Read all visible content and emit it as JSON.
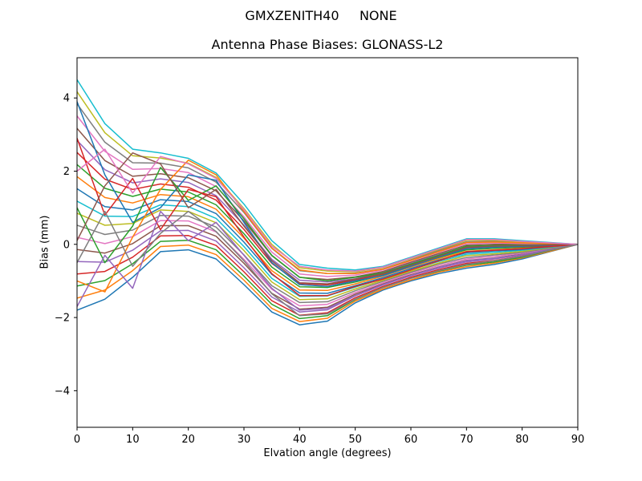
{
  "figure": {
    "suptitle": "GMXZENITH40     NONE",
    "title": "Antenna Phase Biases: GLONASS-L2",
    "xlabel": "Elvation angle (degrees)",
    "ylabel": "Bias (mm)",
    "background": "#ffffff"
  },
  "chart_data": {
    "type": "line",
    "title": "Antenna Phase Biases: GLONASS-L2",
    "suptitle": "GMXZENITH40     NONE",
    "xlabel": "Elvation angle (degrees)",
    "ylabel": "Bias (mm)",
    "xlim": [
      0,
      90
    ],
    "ylim": [
      -5,
      5.1
    ],
    "xticks": [
      0,
      10,
      20,
      30,
      40,
      50,
      60,
      70,
      80,
      90
    ],
    "yticks": [
      -4,
      -2,
      0,
      2,
      4
    ],
    "grid": false,
    "legend": "none",
    "palette": [
      "#1f77b4",
      "#ff7f0e",
      "#2ca02c",
      "#d62728",
      "#9467bd",
      "#8c564b",
      "#e377c2",
      "#7f7f7f",
      "#bcbd22",
      "#17becf"
    ],
    "x": [
      0,
      5,
      10,
      15,
      20,
      25,
      30,
      35,
      40,
      45,
      50,
      55,
      60,
      65,
      70,
      75,
      80,
      85,
      90
    ],
    "series": [
      {
        "name": "line-01",
        "values": [
          -1.8,
          -1.5,
          -0.9,
          -0.2,
          -0.15,
          -0.4,
          -1.1,
          -1.85,
          -2.2,
          -2.1,
          -1.6,
          -1.25,
          -1.0,
          -0.8,
          -0.65,
          -0.55,
          -0.4,
          -0.2,
          0
        ]
      },
      {
        "name": "line-02",
        "values": [
          -1.47,
          -1.25,
          -0.72,
          -0.06,
          -0.02,
          -0.28,
          -0.98,
          -1.75,
          -2.11,
          -2.02,
          -1.55,
          -1.22,
          -0.97,
          -0.76,
          -0.61,
          -0.51,
          -0.37,
          -0.19,
          0
        ]
      },
      {
        "name": "line-03",
        "values": [
          -1.14,
          -0.99,
          -0.53,
          0.08,
          0.11,
          -0.15,
          -0.87,
          -1.64,
          -2.03,
          -1.95,
          -1.51,
          -1.18,
          -0.93,
          -0.73,
          -0.57,
          -0.48,
          -0.35,
          -0.17,
          0
        ]
      },
      {
        "name": "line-04",
        "values": [
          -0.81,
          -0.74,
          -0.35,
          0.23,
          0.24,
          -0.03,
          -0.75,
          -1.54,
          -1.94,
          -1.87,
          -1.46,
          -1.15,
          -0.9,
          -0.69,
          -0.52,
          -0.44,
          -0.32,
          -0.16,
          0
        ]
      },
      {
        "name": "line-05",
        "values": [
          -0.47,
          -0.49,
          -0.16,
          0.37,
          0.38,
          0.09,
          -0.64,
          -1.44,
          -1.85,
          -1.79,
          -1.41,
          -1.11,
          -0.86,
          -0.65,
          -0.48,
          -0.4,
          -0.29,
          -0.15,
          0
        ]
      },
      {
        "name": "line-06",
        "values": [
          -0.14,
          -0.24,
          0.02,
          0.51,
          0.51,
          0.22,
          -0.52,
          -1.34,
          -1.77,
          -1.72,
          -1.36,
          -1.08,
          -0.83,
          -0.62,
          -0.44,
          -0.37,
          -0.27,
          -0.13,
          0
        ]
      },
      {
        "name": "line-07",
        "values": [
          0.19,
          0.02,
          0.21,
          0.65,
          0.64,
          0.34,
          -0.41,
          -1.23,
          -1.68,
          -1.64,
          -1.32,
          -1.05,
          -0.79,
          -0.58,
          -0.4,
          -0.33,
          -0.24,
          -0.12,
          0
        ]
      },
      {
        "name": "line-08",
        "values": [
          0.52,
          0.27,
          0.39,
          0.79,
          0.77,
          0.47,
          -0.29,
          -1.13,
          -1.59,
          -1.57,
          -1.27,
          -1.01,
          -0.76,
          -0.54,
          -0.36,
          -0.29,
          -0.22,
          -0.11,
          0
        ]
      },
      {
        "name": "line-09",
        "values": [
          0.85,
          0.52,
          0.57,
          0.94,
          0.9,
          0.59,
          -0.17,
          -1.03,
          -1.51,
          -1.49,
          -1.22,
          -0.98,
          -0.73,
          -0.51,
          -0.31,
          -0.26,
          -0.19,
          -0.09,
          0
        ]
      },
      {
        "name": "line-10",
        "values": [
          1.18,
          0.77,
          0.76,
          1.08,
          1.03,
          0.71,
          -0.06,
          -0.93,
          -1.42,
          -1.41,
          -1.17,
          -0.94,
          -0.69,
          -0.47,
          -0.27,
          -0.22,
          -0.16,
          -0.08,
          0
        ]
      },
      {
        "name": "line-11",
        "values": [
          1.52,
          1.03,
          0.94,
          1.22,
          1.17,
          0.84,
          0.06,
          -0.82,
          -1.33,
          -1.34,
          -1.13,
          -0.91,
          -0.66,
          -0.43,
          -0.23,
          -0.18,
          -0.14,
          -0.07,
          0
        ]
      },
      {
        "name": "line-12",
        "values": [
          1.85,
          1.28,
          1.13,
          1.36,
          1.3,
          0.96,
          0.17,
          -0.72,
          -1.25,
          -1.26,
          -1.08,
          -0.87,
          -0.62,
          -0.39,
          -0.19,
          -0.15,
          -0.11,
          -0.06,
          0
        ]
      },
      {
        "name": "line-13",
        "values": [
          2.18,
          1.53,
          1.31,
          1.51,
          1.43,
          1.08,
          0.29,
          -0.62,
          -1.16,
          -1.18,
          -1.03,
          -0.84,
          -0.59,
          -0.36,
          -0.15,
          -0.11,
          -0.08,
          -0.04,
          0
        ]
      },
      {
        "name": "line-14",
        "values": [
          2.51,
          1.78,
          1.5,
          1.65,
          1.56,
          1.21,
          0.41,
          -0.52,
          -1.07,
          -1.11,
          -0.98,
          -0.81,
          -0.56,
          -0.32,
          -0.1,
          -0.07,
          -0.06,
          -0.03,
          0
        ]
      },
      {
        "name": "line-15",
        "values": [
          2.84,
          2.04,
          1.68,
          1.79,
          1.69,
          1.33,
          0.52,
          -0.41,
          -0.98,
          -1.03,
          -0.94,
          -0.77,
          -0.52,
          -0.28,
          -0.06,
          -0.03,
          -0.03,
          -0.02,
          0
        ]
      },
      {
        "name": "line-16",
        "values": [
          3.17,
          2.29,
          1.86,
          1.93,
          1.82,
          1.46,
          0.64,
          -0.31,
          -0.9,
          -0.96,
          -0.89,
          -0.74,
          -0.49,
          -0.25,
          -0.02,
          0,
          0,
          0,
          0
        ]
      },
      {
        "name": "line-17",
        "values": [
          3.51,
          2.54,
          2.05,
          2.07,
          1.96,
          1.58,
          0.75,
          -0.21,
          -0.81,
          -0.88,
          -0.84,
          -0.7,
          -0.45,
          -0.21,
          0.02,
          0.04,
          0.02,
          0.01,
          0
        ]
      },
      {
        "name": "line-18",
        "values": [
          3.84,
          2.79,
          2.23,
          2.22,
          2.09,
          1.7,
          0.87,
          -0.11,
          -0.72,
          -0.8,
          -0.79,
          -0.67,
          -0.42,
          -0.17,
          0.07,
          0.08,
          0.05,
          0.02,
          0
        ]
      },
      {
        "name": "line-19",
        "values": [
          4.17,
          3.05,
          2.42,
          2.36,
          2.22,
          1.83,
          0.98,
          0,
          -0.64,
          -0.73,
          -0.75,
          -0.63,
          -0.38,
          -0.14,
          0.11,
          0.11,
          0.07,
          0.04,
          0
        ]
      },
      {
        "name": "line-20",
        "values": [
          4.5,
          3.3,
          2.6,
          2.5,
          2.35,
          1.95,
          1.1,
          0.1,
          -0.55,
          -0.65,
          -0.7,
          -0.6,
          -0.35,
          -0.1,
          0.15,
          0.15,
          0.1,
          0.05,
          0
        ]
      },
      {
        "name": "line-21",
        "values": [
          3.9,
          1.9,
          0.6,
          1.0,
          1.9,
          1.75,
          0.6,
          -0.5,
          -1.1,
          -1.15,
          -1.0,
          -0.85,
          -0.6,
          -0.35,
          -0.12,
          -0.08,
          -0.05,
          -0.02,
          0
        ]
      },
      {
        "name": "line-22",
        "values": [
          -1.0,
          -1.3,
          0.2,
          1.5,
          2.3,
          1.9,
          0.9,
          -0.1,
          -0.7,
          -0.8,
          -0.8,
          -0.68,
          -0.44,
          -0.2,
          0.05,
          0.06,
          0.04,
          0.02,
          0
        ]
      },
      {
        "name": "line-23",
        "values": [
          1.0,
          -0.5,
          0.5,
          2.1,
          1.2,
          1.6,
          0.7,
          -0.3,
          -0.9,
          -1.0,
          -0.9,
          -0.78,
          -0.54,
          -0.3,
          -0.05,
          -0.03,
          -0.02,
          -0.01,
          0
        ]
      },
      {
        "name": "line-24",
        "values": [
          2.9,
          0.8,
          1.8,
          0.4,
          1.5,
          1.3,
          0.2,
          -0.8,
          -1.4,
          -1.4,
          -1.15,
          -0.95,
          -0.7,
          -0.45,
          -0.2,
          -0.16,
          -0.12,
          -0.06,
          0
        ]
      },
      {
        "name": "line-25",
        "values": [
          -1.7,
          -0.3,
          -1.2,
          0.9,
          0.1,
          0.6,
          -0.3,
          -1.2,
          -1.8,
          -1.75,
          -1.4,
          -1.1,
          -0.85,
          -0.63,
          -0.45,
          -0.38,
          -0.28,
          -0.14,
          0
        ]
      },
      {
        "name": "line-26",
        "values": [
          0.1,
          1.6,
          2.5,
          2.2,
          1.0,
          1.5,
          0.5,
          -0.45,
          -1.05,
          -1.08,
          -0.95,
          -0.8,
          -0.57,
          -0.33,
          -0.08,
          -0.05,
          -0.03,
          -0.01,
          0
        ]
      },
      {
        "name": "line-27",
        "values": [
          2.0,
          2.6,
          1.4,
          2.4,
          2.2,
          1.8,
          0.95,
          -0.05,
          -0.6,
          -0.7,
          -0.73,
          -0.62,
          -0.37,
          -0.12,
          0.13,
          0.13,
          0.08,
          0.04,
          0
        ]
      },
      {
        "name": "line-28",
        "values": [
          -0.5,
          0.9,
          -0.6,
          0.3,
          0.9,
          0.35,
          -0.45,
          -1.35,
          -1.95,
          -1.9,
          -1.5,
          -1.18,
          -0.93,
          -0.72,
          -0.55,
          -0.45,
          -0.33,
          -0.16,
          0
        ]
      }
    ]
  }
}
